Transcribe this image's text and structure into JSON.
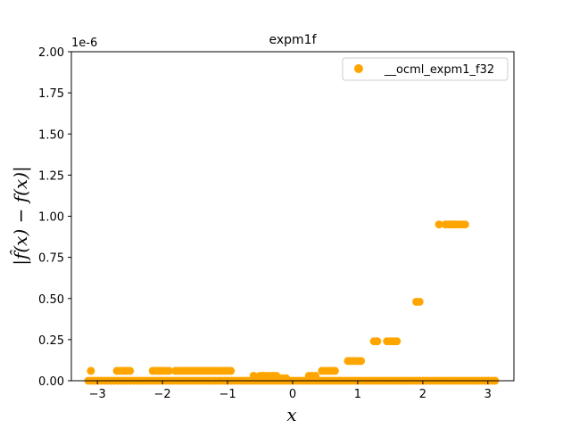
{
  "chart_data": {
    "type": "scatter",
    "title": "expm1f",
    "xlabel": "x",
    "ylabel": "|f̂(x) − f(x)|",
    "y_offset_text": "1e-6",
    "xlim": [
      -3.4,
      3.4
    ],
    "ylim": [
      0,
      2.0
    ],
    "y_scale_factor": 1e-06,
    "xticks": [
      -3,
      -2,
      -1,
      0,
      1,
      2,
      3
    ],
    "xtick_labels": [
      "−3",
      "−2",
      "−1",
      "0",
      "1",
      "2",
      "3"
    ],
    "yticks": [
      0,
      0.25,
      0.5,
      0.75,
      1.0,
      1.25,
      1.5,
      1.75,
      2.0
    ],
    "ytick_labels": [
      "0.00",
      "0.25",
      "0.50",
      "0.75",
      "1.00",
      "1.25",
      "1.50",
      "1.75",
      "2.00"
    ],
    "grid": false,
    "legend_position": "top-right",
    "series": [
      {
        "name": "__ocml_expm1_f32",
        "color": "#ffa500",
        "x": [
          -3.1,
          -2.7,
          -2.65,
          -2.6,
          -2.55,
          -2.5,
          -2.15,
          -2.1,
          -2.05,
          -2.0,
          -1.95,
          -1.9,
          -1.8,
          -1.75,
          -1.7,
          -1.65,
          -1.6,
          -1.55,
          -1.5,
          -1.45,
          -1.4,
          -1.35,
          -1.3,
          -1.25,
          -1.2,
          -1.15,
          -1.1,
          -1.05,
          -1.0,
          -0.95,
          -0.6,
          -0.5,
          -0.45,
          -0.4,
          -0.35,
          -0.3,
          -0.25,
          -0.2,
          -0.15,
          -0.1,
          0.25,
          0.3,
          0.35,
          0.45,
          0.5,
          0.55,
          0.6,
          0.65,
          0.85,
          0.9,
          0.95,
          1.0,
          1.05,
          1.25,
          1.3,
          1.45,
          1.5,
          1.55,
          1.6,
          1.9,
          1.95,
          2.25,
          2.35,
          2.4,
          2.45,
          2.5,
          2.55,
          2.6,
          2.65
        ],
        "y": [
          0.06,
          0.06,
          0.06,
          0.06,
          0.06,
          0.06,
          0.06,
          0.06,
          0.06,
          0.06,
          0.06,
          0.06,
          0.06,
          0.06,
          0.06,
          0.06,
          0.06,
          0.06,
          0.06,
          0.06,
          0.06,
          0.06,
          0.06,
          0.06,
          0.06,
          0.06,
          0.06,
          0.06,
          0.06,
          0.06,
          0.03,
          0.03,
          0.03,
          0.03,
          0.03,
          0.03,
          0.03,
          0.015,
          0.015,
          0.015,
          0.03,
          0.03,
          0.03,
          0.06,
          0.06,
          0.06,
          0.06,
          0.06,
          0.12,
          0.12,
          0.12,
          0.12,
          0.12,
          0.24,
          0.24,
          0.24,
          0.24,
          0.24,
          0.24,
          0.48,
          0.48,
          0.95,
          0.95,
          0.95,
          0.95,
          0.95,
          0.95,
          0.95,
          0.95
        ],
        "zero_band": {
          "x_start": -3.14,
          "x_end": 3.14,
          "step": 0.05,
          "y": 0
        }
      }
    ]
  }
}
